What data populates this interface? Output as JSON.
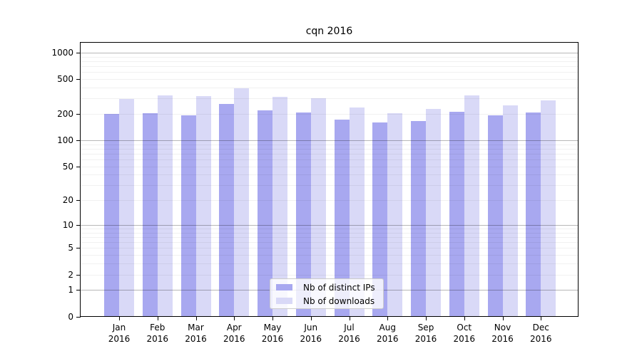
{
  "chart_data": {
    "type": "bar",
    "title": "cqn 2016",
    "categories": [
      [
        "Jan",
        "2016"
      ],
      [
        "Feb",
        "2016"
      ],
      [
        "Mar",
        "2016"
      ],
      [
        "Apr",
        "2016"
      ],
      [
        "May",
        "2016"
      ],
      [
        "Jun",
        "2016"
      ],
      [
        "Jul",
        "2016"
      ],
      [
        "Aug",
        "2016"
      ],
      [
        "Sep",
        "2016"
      ],
      [
        "Oct",
        "2016"
      ],
      [
        "Nov",
        "2016"
      ],
      [
        "Dec",
        "2016"
      ]
    ],
    "series": [
      {
        "name": "Nb of distinct IPs",
        "slug": "distinct-ips",
        "color": "#a8a8f0",
        "values": [
          199,
          204,
          193,
          258,
          220,
          207,
          172,
          160,
          165,
          210,
          192,
          207
        ]
      },
      {
        "name": "Nb of downloads",
        "slug": "downloads",
        "color": "#d9d9f7",
        "values": [
          295,
          325,
          320,
          390,
          312,
          300,
          237,
          205,
          228,
          325,
          250,
          285
        ]
      }
    ],
    "yticks": [
      0,
      1,
      2,
      5,
      10,
      20,
      50,
      100,
      200,
      500,
      1000
    ],
    "ylim": [
      0,
      1000
    ],
    "yscale": "log1p",
    "grid": true,
    "legend_position": "lower-center",
    "colors": {
      "grid_major": "#b8b8b8",
      "grid_minor": "#f1f1f1",
      "axis": "#000000",
      "background": "#ffffff"
    }
  }
}
